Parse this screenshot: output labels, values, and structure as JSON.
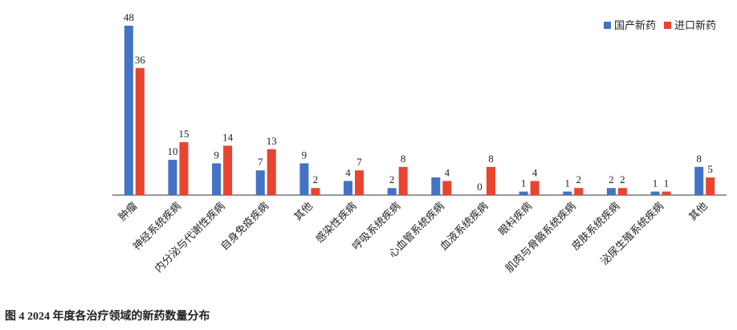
{
  "chart_data": {
    "type": "bar",
    "caption": "图 4 2024 年度各治疗领域的新药数量分布",
    "categories": [
      "肿瘤",
      "神经系统疾病",
      "内分泌与代谢性疾病",
      "自身免疫疾病",
      "其他",
      "感染性疾病",
      "呼吸系统疾病",
      "心血管系统疾病",
      "血液系统疾病",
      "眼科疾病",
      "肌肉与骨骼系统疾病",
      "皮肤系统疾病",
      "泌尿生殖系统疾病",
      "其他"
    ],
    "series": [
      {
        "name": "国产新药",
        "color": "#4472c4",
        "values": [
          48,
          10,
          9,
          7,
          9,
          4,
          2,
          5,
          0,
          1,
          1,
          2,
          1,
          8
        ],
        "value_labels": [
          "48",
          "10",
          "9",
          "7",
          "9",
          "4",
          "2",
          null,
          "0",
          "1",
          "1",
          "2",
          "1",
          "8"
        ]
      },
      {
        "name": "进口新药",
        "color": "#e8442f",
        "values": [
          36,
          15,
          14,
          13,
          2,
          7,
          8,
          4,
          8,
          4,
          2,
          2,
          1,
          5
        ],
        "value_labels": [
          "36",
          "15",
          "14",
          "13",
          "2",
          "7",
          "8",
          "4",
          "8",
          "4",
          "2",
          "2",
          "1",
          "5"
        ]
      }
    ],
    "legend": "top-right"
  }
}
